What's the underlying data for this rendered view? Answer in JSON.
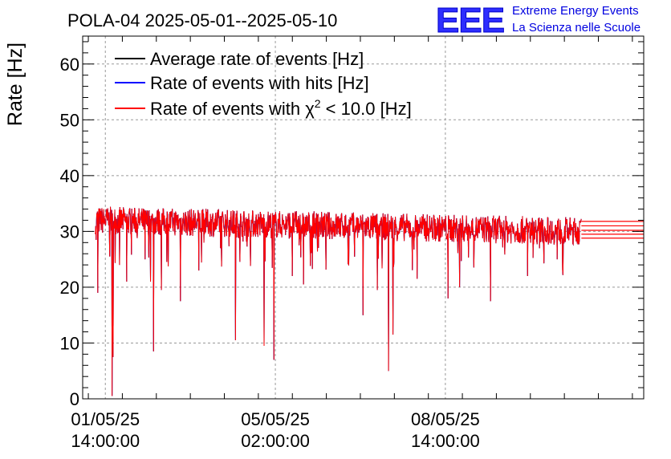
{
  "header": {
    "title": "POLA-04 2025-05-01--2025-05-10"
  },
  "logo": {
    "mark": "EEE",
    "line1": "Extreme Energy Events",
    "line2": "La Scienza nelle Scuole"
  },
  "chart_data": {
    "type": "line",
    "title": "POLA-04 2025-05-01--2025-05-10",
    "ylabel": "Rate [Hz]",
    "xlabel": "",
    "ylim": [
      0,
      65
    ],
    "yticks": [
      0,
      10,
      20,
      30,
      40,
      50,
      60
    ],
    "ytick_labels": [
      "0",
      "10",
      "20",
      "30",
      "40",
      "50",
      "60"
    ],
    "xlim_hours": [
      -8,
      190
    ],
    "xticks_hours": [
      0,
      60,
      120
    ],
    "xtick_labels": [
      {
        "date": "01/05/25",
        "time": "14:00:00"
      },
      {
        "date": "05/05/25",
        "time": "02:00:00"
      },
      {
        "date": "08/05/25",
        "time": "14:00:00"
      }
    ],
    "grid": true,
    "legend_position": "top-left",
    "series": [
      {
        "name": "Average rate of events [Hz]",
        "color": "#000000",
        "label_prefix": "Average rate of events [Hz]",
        "label_sup": "",
        "label_suffix": ""
      },
      {
        "name": "Rate of events with hits [Hz]",
        "color": "#0000ff",
        "label_prefix": "Rate of events with hits [Hz]",
        "label_sup": "",
        "label_suffix": ""
      },
      {
        "name": "Rate of events with chi2 < 10.0 [Hz]",
        "color": "#ff0000",
        "label_prefix": "Rate of events with χ",
        "label_sup": "2",
        "label_suffix": " < 10.0 [Hz]"
      }
    ],
    "data_range_hours": [
      -3.5,
      168
    ],
    "baseline_start_hz": 32,
    "baseline_end_hz": 30,
    "noise_band_hz": 2.5,
    "final_levels_hz": [
      28.8,
      29.5,
      30.2,
      31.0,
      31.8
    ],
    "dips": [
      {
        "t": -3.2,
        "v": 28.5
      },
      {
        "t": -2.6,
        "v": 19.0
      },
      {
        "t": 1.5,
        "v": 25.5
      },
      {
        "t": 2.4,
        "v": 0.5
      },
      {
        "t": 2.7,
        "v": 7.5
      },
      {
        "t": 5.0,
        "v": 24.0
      },
      {
        "t": 7.5,
        "v": 21.0
      },
      {
        "t": 14.0,
        "v": 25.0
      },
      {
        "t": 16.0,
        "v": 21.0
      },
      {
        "t": 17.0,
        "v": 8.5
      },
      {
        "t": 19.8,
        "v": 19.5
      },
      {
        "t": 26.5,
        "v": 17.5
      },
      {
        "t": 33.0,
        "v": 23.0
      },
      {
        "t": 46.0,
        "v": 10.5
      },
      {
        "t": 56.0,
        "v": 9.5
      },
      {
        "t": 59.5,
        "v": 7.0
      },
      {
        "t": 66.0,
        "v": 22.0
      },
      {
        "t": 70.0,
        "v": 20.5
      },
      {
        "t": 91.0,
        "v": 15.0
      },
      {
        "t": 96.0,
        "v": 19.5
      },
      {
        "t": 100.0,
        "v": 5.0
      },
      {
        "t": 101.5,
        "v": 11.5
      },
      {
        "t": 110.0,
        "v": 21.5
      },
      {
        "t": 121.0,
        "v": 18.0
      },
      {
        "t": 125.0,
        "v": 20.0
      },
      {
        "t": 136.0,
        "v": 17.5
      },
      {
        "t": 149.0,
        "v": 22.0
      },
      {
        "t": 159.5,
        "v": 25.0
      }
    ]
  }
}
